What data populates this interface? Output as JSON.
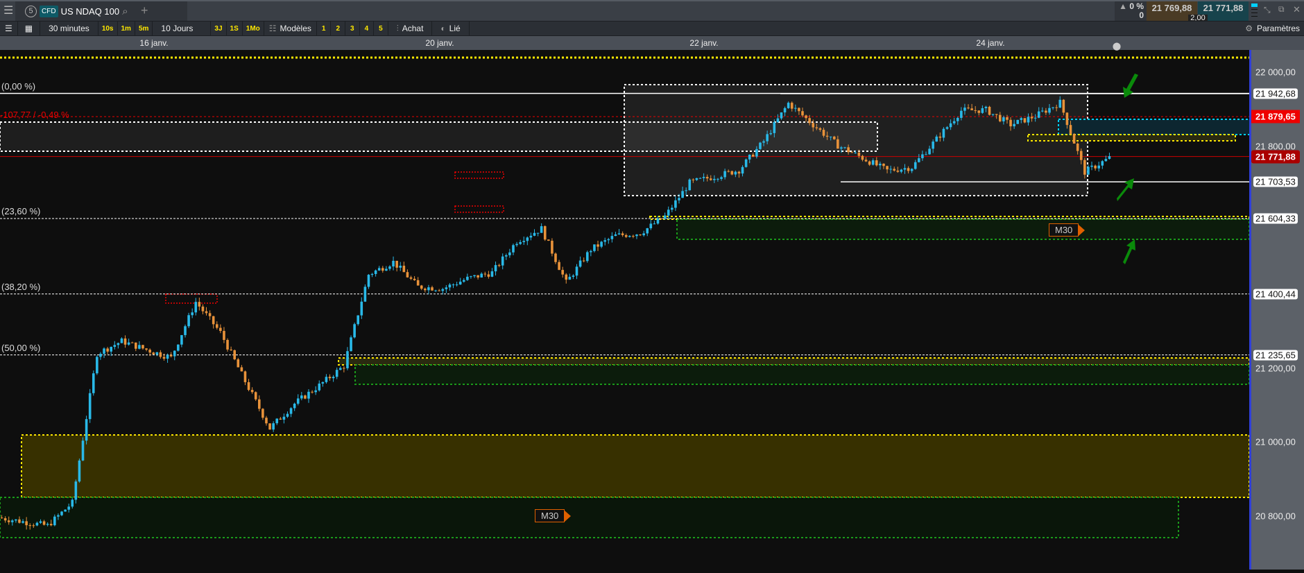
{
  "header": {
    "instrument_badge": "CFD",
    "instrument": "US NDAQ 100",
    "count_badge": "5",
    "change_pct": "0 %",
    "change_abs": "0",
    "bid": "21 769,88",
    "ask": "21 771,88",
    "spread": "2,00"
  },
  "toolbar": {
    "interval": "30 minutes",
    "quick_intervals": [
      "10s",
      "1m",
      "5m"
    ],
    "range": "10 Jours",
    "quick_ranges": [
      "3J",
      "1S",
      "1Mo"
    ],
    "templates": "Modèles",
    "slots": [
      "1",
      "2",
      "3",
      "4",
      "5"
    ],
    "buy": "Achat",
    "linked": "Lié",
    "settings": "Paramètres"
  },
  "colors": {
    "up": "#29b9e8",
    "down": "#e8923a",
    "bg": "#0e0e0e",
    "axis": "#5c6168",
    "last_price": "#a00000",
    "alert": "#e00000"
  },
  "chart_data": {
    "type": "candlestick",
    "x_ticks": [
      "16 janv.",
      "20 janv.",
      "22 janv.",
      "24 janv."
    ],
    "y_ticks": [
      "22 000,00",
      "21 800,00",
      "21 200,00",
      "21 000,00",
      "20 800,00"
    ],
    "y_tick_values": [
      22000,
      21800,
      21200,
      21000,
      20800
    ],
    "ylim": [
      20662,
      22060
    ],
    "approx_closes": [
      20796,
      20785,
      20774,
      20836,
      21239,
      21273,
      21250,
      21228,
      21379,
      21296,
      21164,
      21037,
      21104,
      21153,
      21206,
      21453,
      21487,
      21420,
      21415,
      21442,
      21458,
      21543,
      21577,
      21431,
      21521,
      21558,
      21565,
      21610,
      21701,
      21718,
      21735,
      21813,
      21916,
      21858,
      21802,
      21768,
      21734,
      21743,
      21819,
      21896,
      21898,
      21858,
      21881,
      21918,
      21730,
      21768
    ],
    "fib_levels": [
      {
        "label": "(0,00 %)",
        "price": 21942.68,
        "price_label": "21 942,68"
      },
      {
        "label": "(23,60 %)",
        "price": 21604.33,
        "price_label": "21 604,33"
      },
      {
        "label": "(38,20 %)",
        "price": 21400.44,
        "price_label": "21 400,44"
      },
      {
        "label": "(50,00 %)",
        "price": 21235.65,
        "price_label": "21 235,65"
      }
    ],
    "alert_line": {
      "price": 21879.65,
      "price_label": "21 879,65",
      "text": "-107,77 / -0,49 %"
    },
    "last_price": {
      "price": 21771.88,
      "price_label": "21 771,88"
    },
    "support_line": {
      "price": 21703.53,
      "price_label": "21 703,53"
    },
    "markers": [
      "M30",
      "M30"
    ]
  }
}
